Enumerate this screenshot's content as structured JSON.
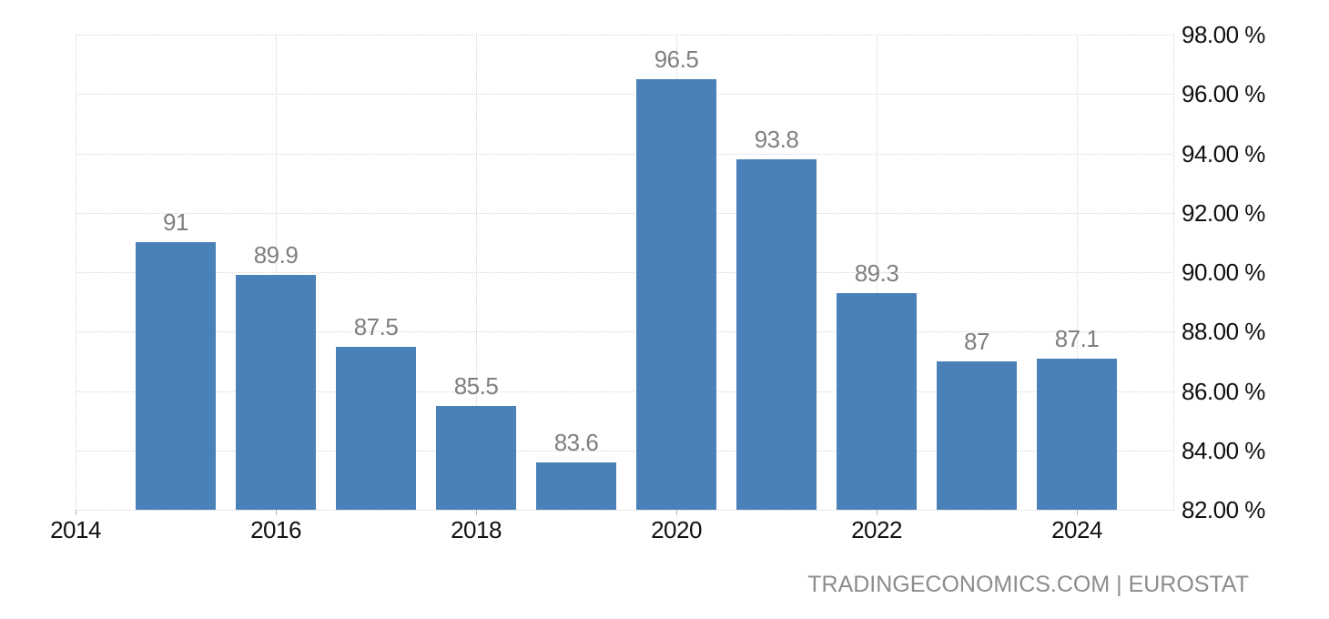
{
  "chart_data": {
    "type": "bar",
    "title": "",
    "categories": [
      2015,
      2016,
      2017,
      2018,
      2019,
      2020,
      2021,
      2022,
      2023,
      2024
    ],
    "values": [
      91,
      89.9,
      87.5,
      85.5,
      83.6,
      96.5,
      93.8,
      89.3,
      87,
      87.1
    ],
    "bar_value_labels": [
      "91",
      "89.9",
      "87.5",
      "85.5",
      "83.6",
      "96.5",
      "93.8",
      "89.3",
      "87",
      "87.1"
    ],
    "x_axis": {
      "tick_years": [
        2014,
        2016,
        2018,
        2020,
        2022,
        2024
      ],
      "tick_labels": [
        "2014",
        "2016",
        "2018",
        "2020",
        "2022",
        "2024"
      ],
      "range": [
        2014,
        2024.97
      ]
    },
    "y_axis": {
      "side": "right",
      "tick_values": [
        98,
        96,
        94,
        92,
        90,
        88,
        86,
        84,
        82
      ],
      "tick_labels": [
        "98.00 %",
        "96.00 %",
        "94.00 %",
        "92.00 %",
        "90.00 %",
        "88.00 %",
        "86.00 %",
        "84.00 %",
        "82.00 %"
      ],
      "range": [
        82,
        98
      ]
    },
    "grid": {
      "style": "dotted",
      "on": true
    },
    "legend_position": "none",
    "colors": {
      "bar": "#4a81b8",
      "value_label": "#7f7f7f",
      "axis_text": "#111111",
      "grid_line": "#d6d6d6",
      "tick_mark": "#b3b3b3",
      "background": "#ffffff",
      "attribution_text": "#8c8c8c"
    }
  },
  "attribution": {
    "text": "TRADINGECONOMICS.COM | EUROSTAT"
  }
}
